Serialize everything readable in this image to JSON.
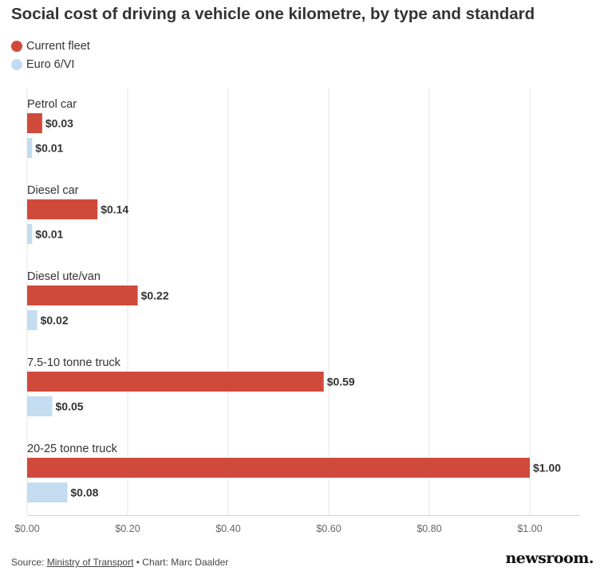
{
  "title": "Social cost of driving a vehicle one kilometre, by type and standard",
  "legend": [
    {
      "label": "Current fleet",
      "color": "#d04a3c"
    },
    {
      "label": "Euro 6/VI",
      "color": "#c3dcf0"
    }
  ],
  "chart_data": {
    "type": "bar",
    "orientation": "horizontal",
    "categories": [
      "Petrol car",
      "Diesel car",
      "Diesel ute/van",
      "7.5-10 tonne truck",
      "20-25 tonne truck"
    ],
    "series": [
      {
        "name": "Current fleet",
        "color": "#d04a3c",
        "values": [
          0.03,
          0.14,
          0.22,
          0.59,
          1.0
        ],
        "labels": [
          "$0.03",
          "$0.14",
          "$0.22",
          "$0.59",
          "$1.00"
        ]
      },
      {
        "name": "Euro 6/VI",
        "color": "#c3dcf0",
        "values": [
          0.01,
          0.01,
          0.02,
          0.05,
          0.08
        ],
        "labels": [
          "$0.01",
          "$0.01",
          "$0.02",
          "$0.05",
          "$0.08"
        ]
      }
    ],
    "xlim": [
      0,
      1.1
    ],
    "xticks": [
      0,
      0.2,
      0.4,
      0.6,
      0.8,
      1.0
    ],
    "xtick_labels": [
      "$0.00",
      "$0.20",
      "$0.40",
      "$0.60",
      "$0.80",
      "$1.00"
    ],
    "grid": "vertical",
    "legend_position": "top-left"
  },
  "footer": {
    "source_prefix": "Source: ",
    "source_link": "Ministry of Transport",
    "credit": " • Chart: Marc Daalder"
  },
  "brand": "newsroom."
}
